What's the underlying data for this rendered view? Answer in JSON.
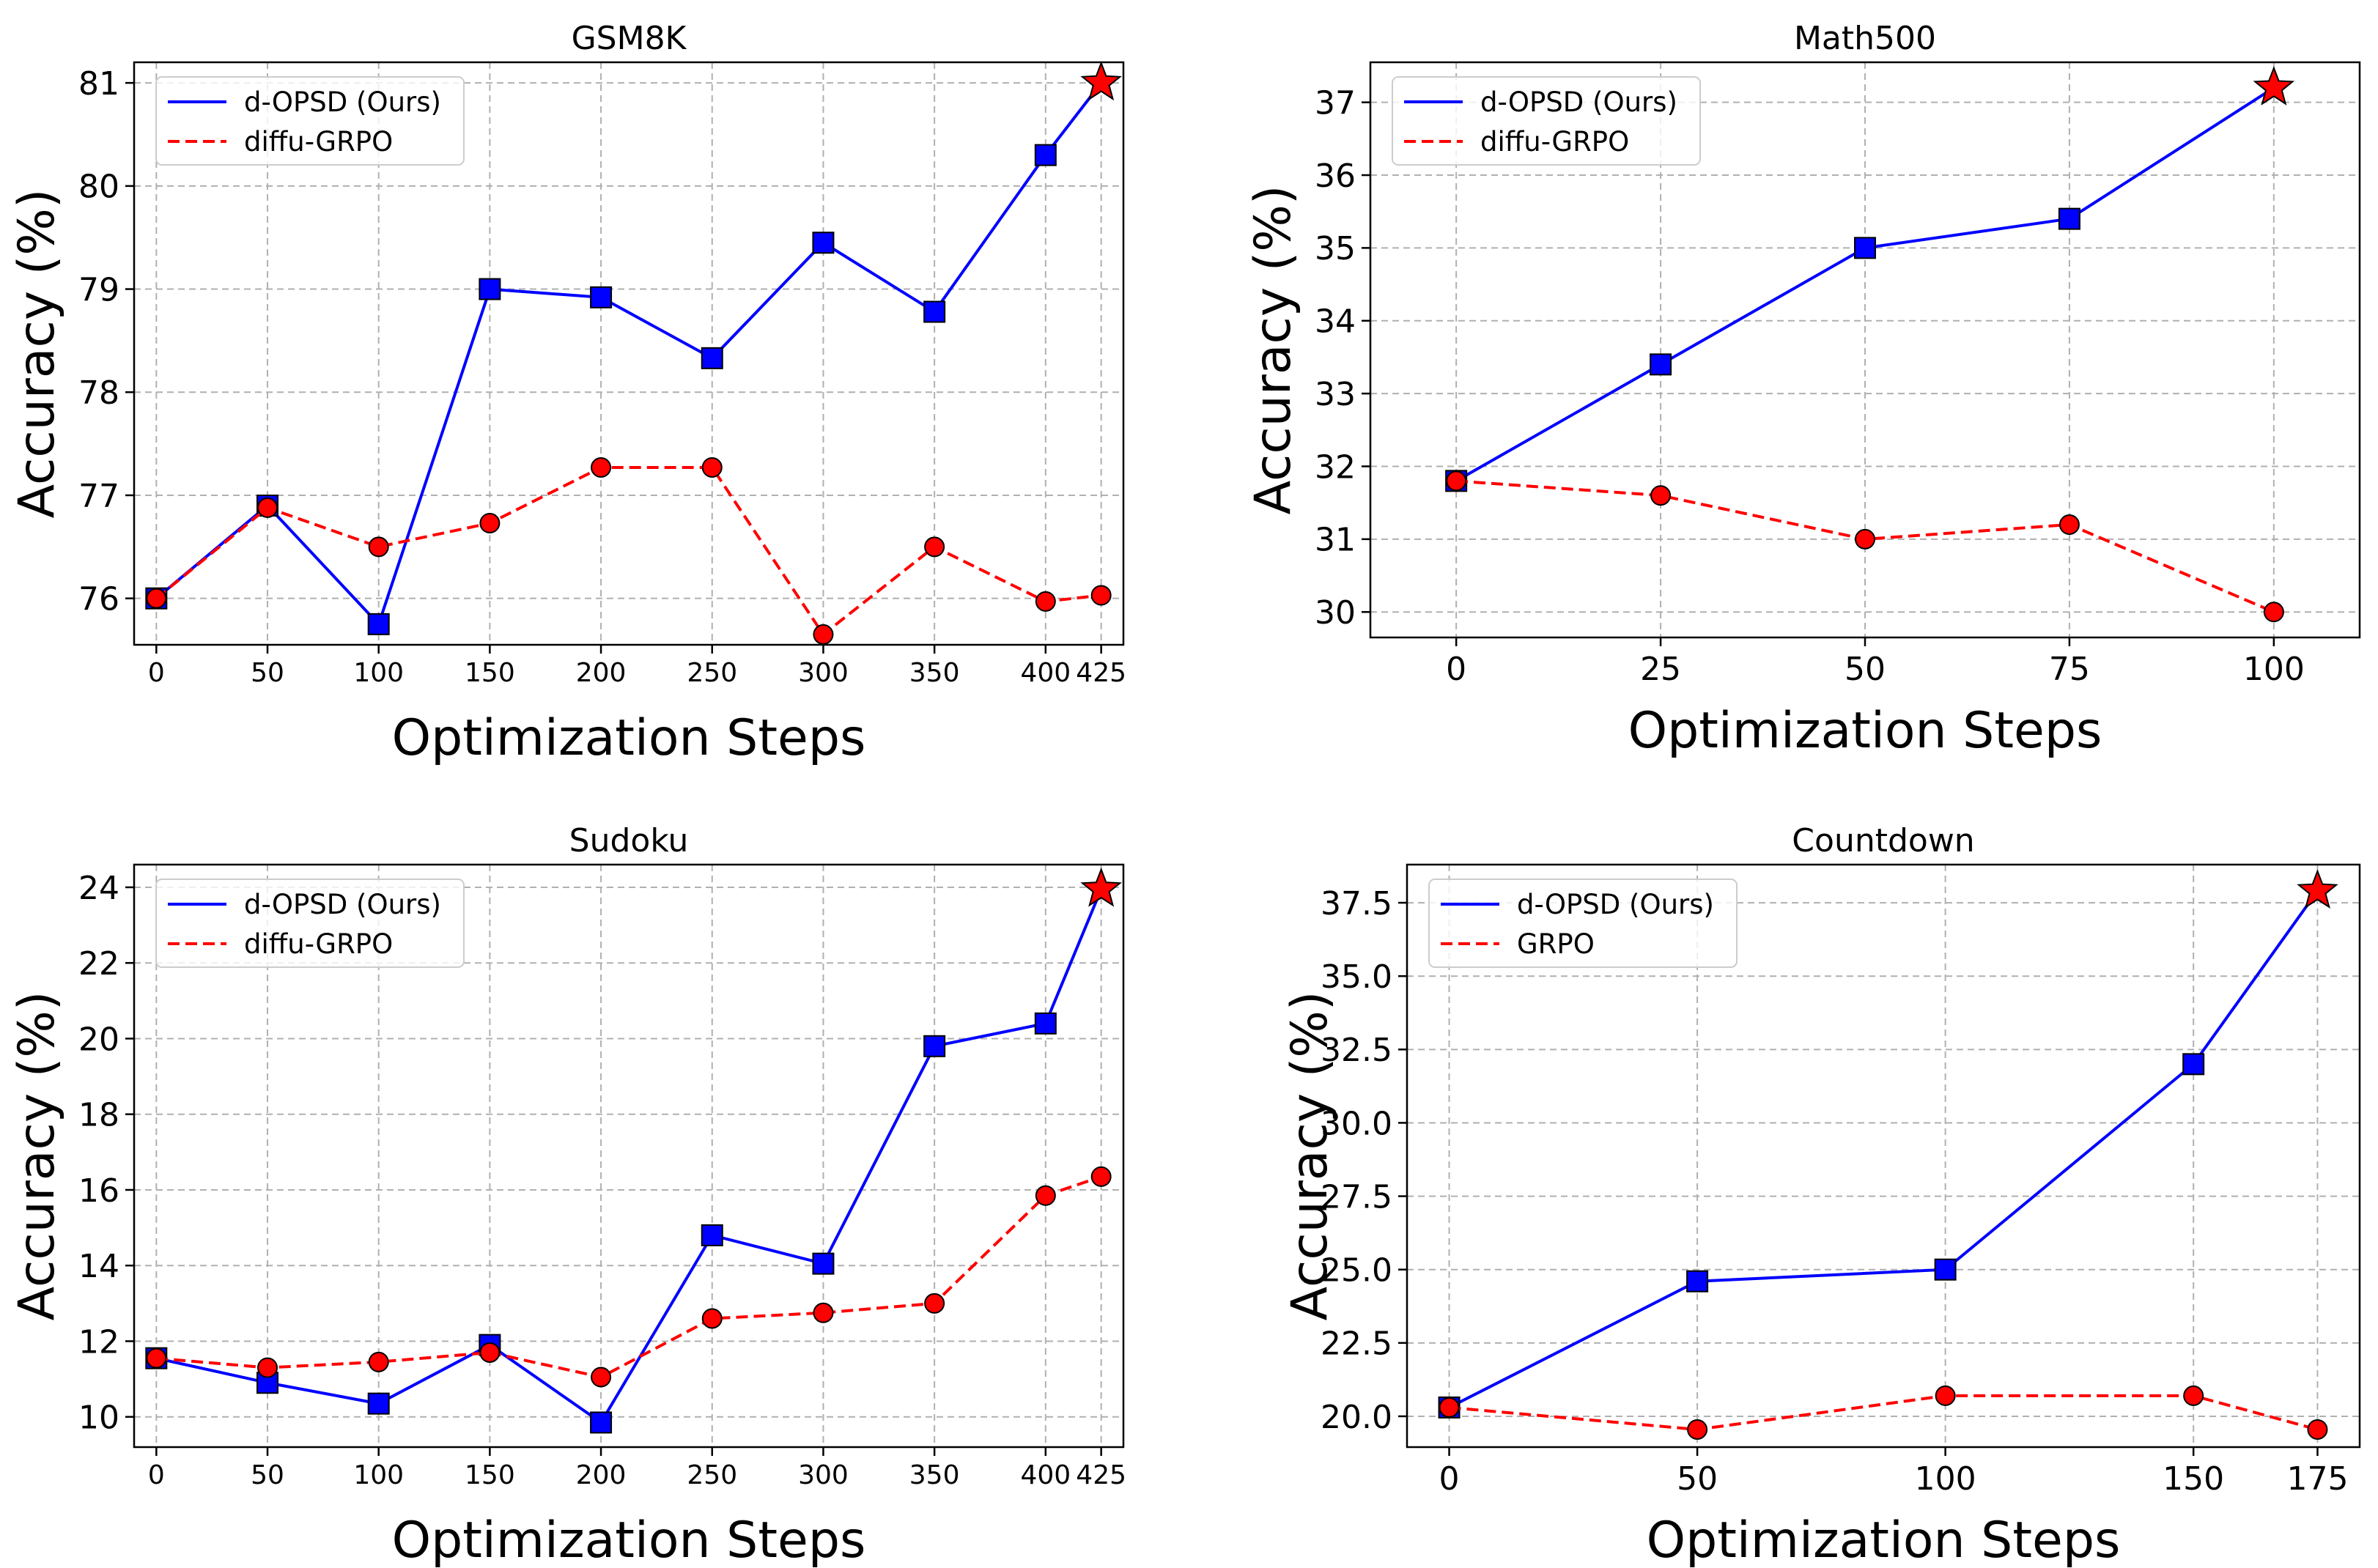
{
  "chart_data": [
    {
      "type": "line",
      "title": "GSM8K",
      "xlabel": "Optimization Steps",
      "ylabel": "Accuracy (%)",
      "x": [
        0,
        50,
        100,
        150,
        200,
        250,
        300,
        350,
        400,
        425
      ],
      "xticks": [
        "0",
        "50",
        "100",
        "150",
        "200",
        "250",
        "300",
        "350",
        "400",
        "425"
      ],
      "yticks": [
        "76",
        "77",
        "78",
        "79",
        "80",
        "81"
      ],
      "xlim": [
        -10,
        435
      ],
      "ylim": [
        75.55,
        81.2
      ],
      "grid": true,
      "legend_position": "top-left",
      "series": [
        {
          "name": "d-OPSD (Ours)",
          "color": "#0000ff",
          "line": "solid",
          "marker": "square",
          "final_marker": "star",
          "values": [
            76.0,
            76.9,
            75.75,
            79.0,
            78.92,
            78.33,
            79.45,
            78.78,
            80.3,
            81.0
          ]
        },
        {
          "name": "diffu-GRPO",
          "color": "#ff0000",
          "line": "dashed",
          "marker": "circle",
          "values": [
            76.0,
            76.88,
            76.5,
            76.73,
            77.27,
            77.27,
            75.65,
            76.5,
            75.97,
            76.03
          ]
        }
      ]
    },
    {
      "type": "line",
      "title": "Math500",
      "xlabel": "Optimization Steps",
      "ylabel": "Accuracy (%)",
      "x": [
        0,
        25,
        50,
        75,
        100
      ],
      "xticks": [
        "0",
        "25",
        "50",
        "75",
        "100"
      ],
      "yticks": [
        "30",
        "31",
        "32",
        "33",
        "34",
        "35",
        "36",
        "37"
      ],
      "xlim": [
        -10.5,
        110.5
      ],
      "ylim": [
        29.65,
        37.55
      ],
      "grid": true,
      "legend_position": "top-left",
      "series": [
        {
          "name": "d-OPSD (Ours)",
          "color": "#0000ff",
          "line": "solid",
          "marker": "square",
          "final_marker": "star",
          "values": [
            31.8,
            33.4,
            35.0,
            35.4,
            37.2
          ]
        },
        {
          "name": "diffu-GRPO",
          "color": "#ff0000",
          "line": "dashed",
          "marker": "circle",
          "values": [
            31.8,
            31.6,
            31.0,
            31.2,
            30.0
          ]
        }
      ]
    },
    {
      "type": "line",
      "title": "Sudoku",
      "xlabel": "Optimization Steps",
      "ylabel": "Accuracy (%)",
      "x": [
        0,
        50,
        100,
        150,
        200,
        250,
        300,
        350,
        400,
        425
      ],
      "xticks": [
        "0",
        "50",
        "100",
        "150",
        "200",
        "250",
        "300",
        "350",
        "400",
        "425"
      ],
      "yticks": [
        "10",
        "12",
        "14",
        "16",
        "18",
        "20",
        "22",
        "24"
      ],
      "xlim": [
        -10,
        435
      ],
      "ylim": [
        9.2,
        24.6
      ],
      "grid": true,
      "legend_position": "top-left",
      "series": [
        {
          "name": "d-OPSD (Ours)",
          "color": "#0000ff",
          "line": "solid",
          "marker": "square",
          "final_marker": "star",
          "values": [
            11.55,
            10.9,
            10.35,
            11.9,
            9.85,
            14.8,
            14.05,
            19.8,
            20.4,
            23.95
          ]
        },
        {
          "name": "diffu-GRPO",
          "color": "#ff0000",
          "line": "dashed",
          "marker": "circle",
          "values": [
            11.55,
            11.3,
            11.45,
            11.7,
            11.05,
            12.6,
            12.75,
            13.0,
            15.85,
            16.35
          ]
        }
      ]
    },
    {
      "type": "line",
      "title": "Countdown",
      "xlabel": "Optimization Steps",
      "ylabel": "Accuracy (%)",
      "x": [
        0,
        50,
        100,
        150,
        175
      ],
      "xticks": [
        "0",
        "50",
        "100",
        "150",
        "175"
      ],
      "yticks": [
        "20.0",
        "22.5",
        "25.0",
        "27.5",
        "30.0",
        "32.5",
        "35.0",
        "37.5"
      ],
      "xlim": [
        -8.5,
        183.5
      ],
      "ylim": [
        18.95,
        38.8
      ],
      "grid": true,
      "legend_position": "top-left",
      "series": [
        {
          "name": "d-OPSD (Ours)",
          "color": "#0000ff",
          "line": "solid",
          "marker": "square",
          "final_marker": "star",
          "values": [
            20.3,
            24.6,
            25.0,
            32.0,
            37.9
          ]
        },
        {
          "name": "GRPO",
          "color": "#ff0000",
          "line": "dashed",
          "marker": "circle",
          "values": [
            20.3,
            19.55,
            20.7,
            20.7,
            19.55
          ]
        }
      ]
    }
  ]
}
